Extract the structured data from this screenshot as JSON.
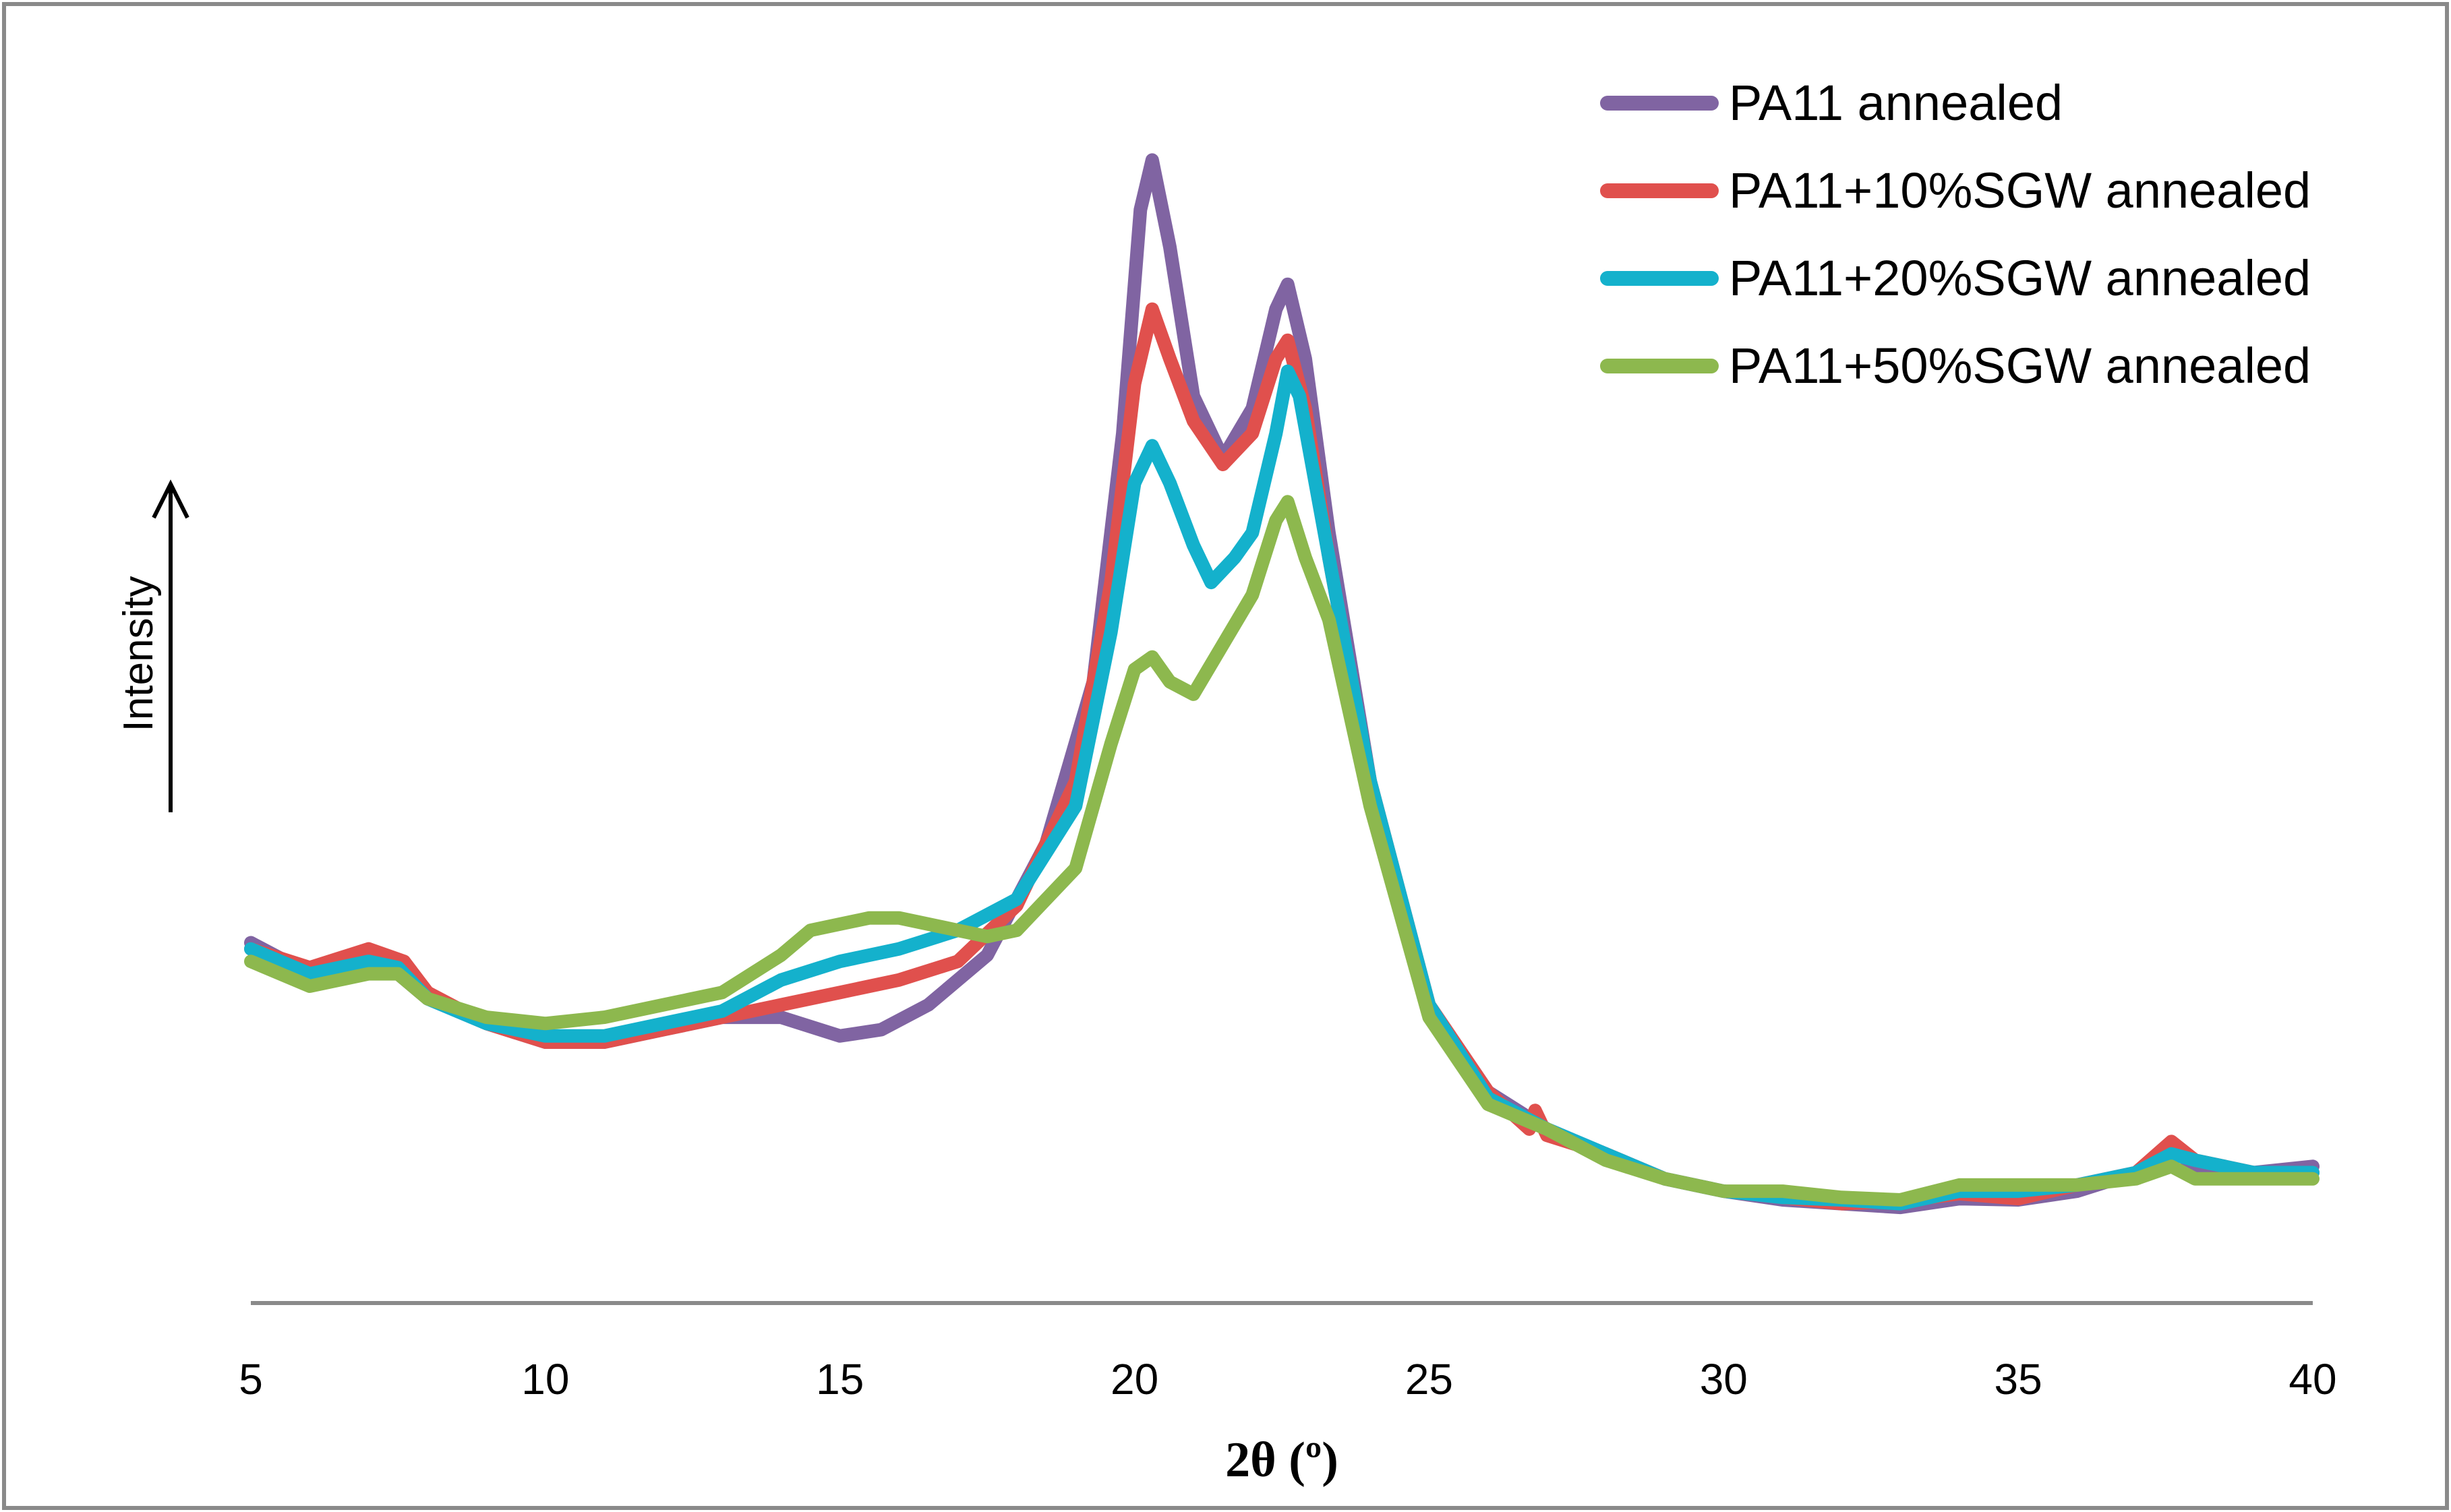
{
  "chart_data": {
    "type": "line",
    "title": "",
    "xlabel": "2θ (º)",
    "ylabel": "Intensity",
    "xlim": [
      5,
      40
    ],
    "ylim": [
      0,
      100
    ],
    "xticks": [
      5,
      10,
      15,
      20,
      25,
      30,
      35,
      40
    ],
    "xtick_labels": [
      "5",
      "10",
      "15",
      "20",
      "25",
      "30",
      "35",
      "40"
    ],
    "y_tick_labels_shown": false,
    "grid": false,
    "legend_position": "top-right",
    "series": [
      {
        "name": "PA11 annealed",
        "color": "#8064a2",
        "points": [
          [
            5,
            29
          ],
          [
            6,
            26.5
          ],
          [
            7,
            27.5
          ],
          [
            7.5,
            26.5
          ],
          [
            8,
            24.5
          ],
          [
            9,
            22.5
          ],
          [
            10,
            21
          ],
          [
            11,
            21
          ],
          [
            12,
            22
          ],
          [
            13,
            23
          ],
          [
            14,
            23
          ],
          [
            15,
            21.5
          ],
          [
            15.7,
            22
          ],
          [
            16.5,
            24
          ],
          [
            17.5,
            28
          ],
          [
            18.5,
            37
          ],
          [
            19.3,
            50
          ],
          [
            19.8,
            70
          ],
          [
            20.1,
            88
          ],
          [
            20.3,
            92
          ],
          [
            20.6,
            85
          ],
          [
            21,
            73
          ],
          [
            21.5,
            68
          ],
          [
            22,
            72
          ],
          [
            22.4,
            80
          ],
          [
            22.6,
            82
          ],
          [
            22.9,
            76
          ],
          [
            23.3,
            62
          ],
          [
            24,
            42
          ],
          [
            25,
            24
          ],
          [
            26,
            17
          ],
          [
            27,
            14
          ],
          [
            28,
            12
          ],
          [
            29,
            10
          ],
          [
            30,
            9
          ],
          [
            31,
            8.3
          ],
          [
            32,
            8
          ],
          [
            33,
            7.7
          ],
          [
            34,
            8.4
          ],
          [
            35,
            8.3
          ],
          [
            36,
            9
          ],
          [
            37,
            10.5
          ],
          [
            37.6,
            12.5
          ],
          [
            38,
            11
          ],
          [
            39,
            10.5
          ],
          [
            40,
            11
          ]
        ]
      },
      {
        "name": "PA11+10%SGW annealed",
        "color": "#e0504d",
        "points": [
          [
            5,
            28.5
          ],
          [
            6,
            27
          ],
          [
            7,
            28.5
          ],
          [
            7.6,
            27.5
          ],
          [
            8,
            25
          ],
          [
            9,
            22.5
          ],
          [
            10,
            21
          ],
          [
            11,
            21
          ],
          [
            12,
            22
          ],
          [
            13,
            23
          ],
          [
            14,
            24
          ],
          [
            15,
            25
          ],
          [
            16,
            26
          ],
          [
            17,
            27.5
          ],
          [
            18,
            32
          ],
          [
            19,
            42
          ],
          [
            19.6,
            58
          ],
          [
            20,
            74
          ],
          [
            20.3,
            80
          ],
          [
            20.6,
            76
          ],
          [
            21,
            71
          ],
          [
            21.5,
            67.5
          ],
          [
            22,
            70
          ],
          [
            22.4,
            76
          ],
          [
            22.6,
            77.5
          ],
          [
            22.9,
            72
          ],
          [
            23.3,
            60
          ],
          [
            24,
            42
          ],
          [
            25,
            24
          ],
          [
            26,
            17
          ],
          [
            26.7,
            14
          ],
          [
            26.8,
            15.5
          ],
          [
            27,
            13.5
          ],
          [
            28,
            12
          ],
          [
            29,
            10
          ],
          [
            30,
            9
          ],
          [
            31,
            8.5
          ],
          [
            32,
            8
          ],
          [
            33,
            8.2
          ],
          [
            34,
            8.8
          ],
          [
            35,
            8.4
          ],
          [
            36,
            9.5
          ],
          [
            37,
            10.5
          ],
          [
            37.6,
            13
          ],
          [
            38,
            11.5
          ],
          [
            39,
            10.5
          ],
          [
            40,
            10.5
          ]
        ]
      },
      {
        "name": "PA11+20%SGW annealed",
        "color": "#14b1cc",
        "points": [
          [
            5,
            28.5
          ],
          [
            6,
            26.5
          ],
          [
            7,
            27.5
          ],
          [
            7.5,
            27
          ],
          [
            8,
            24.5
          ],
          [
            9,
            22.5
          ],
          [
            10,
            21.5
          ],
          [
            11,
            21.5
          ],
          [
            12,
            22.5
          ],
          [
            13,
            23.5
          ],
          [
            14,
            26
          ],
          [
            15,
            27.5
          ],
          [
            16,
            28.5
          ],
          [
            17,
            30
          ],
          [
            18,
            32.5
          ],
          [
            19,
            40
          ],
          [
            19.6,
            54
          ],
          [
            20,
            66
          ],
          [
            20.3,
            69
          ],
          [
            20.6,
            66
          ],
          [
            21,
            61
          ],
          [
            21.3,
            58
          ],
          [
            21.7,
            60
          ],
          [
            22,
            62
          ],
          [
            22.4,
            70
          ],
          [
            22.6,
            75
          ],
          [
            22.8,
            73
          ],
          [
            23.3,
            60
          ],
          [
            24,
            42
          ],
          [
            25,
            24
          ],
          [
            26,
            16.5
          ],
          [
            27,
            14
          ],
          [
            28,
            12
          ],
          [
            29,
            10
          ],
          [
            30,
            9
          ],
          [
            31,
            8.5
          ],
          [
            32,
            8.3
          ],
          [
            33,
            8
          ],
          [
            34,
            9
          ],
          [
            35,
            9
          ],
          [
            36,
            9.5
          ],
          [
            37,
            10.5
          ],
          [
            37.6,
            12
          ],
          [
            38,
            11.5
          ],
          [
            39,
            10.5
          ],
          [
            40,
            10.5
          ]
        ]
      },
      {
        "name": "PA11+50%SGW annealed",
        "color": "#8db84e",
        "points": [
          [
            5,
            27.5
          ],
          [
            6,
            25.5
          ],
          [
            7,
            26.5
          ],
          [
            7.5,
            26.5
          ],
          [
            8,
            24.5
          ],
          [
            9,
            23
          ],
          [
            10,
            22.5
          ],
          [
            11,
            23
          ],
          [
            12,
            24
          ],
          [
            13,
            25
          ],
          [
            14,
            28
          ],
          [
            14.5,
            30
          ],
          [
            15,
            30.5
          ],
          [
            15.5,
            31
          ],
          [
            16,
            31
          ],
          [
            17,
            30
          ],
          [
            17.5,
            29.5
          ],
          [
            18,
            30
          ],
          [
            19,
            35
          ],
          [
            19.6,
            45
          ],
          [
            20,
            51
          ],
          [
            20.3,
            52
          ],
          [
            20.6,
            50
          ],
          [
            21,
            49
          ],
          [
            21.5,
            53
          ],
          [
            22,
            57
          ],
          [
            22.4,
            63
          ],
          [
            22.6,
            64.5
          ],
          [
            22.9,
            60
          ],
          [
            23.3,
            55
          ],
          [
            24,
            40
          ],
          [
            25,
            23
          ],
          [
            26,
            16
          ],
          [
            27,
            14
          ],
          [
            28,
            11.5
          ],
          [
            29,
            10
          ],
          [
            30,
            9
          ],
          [
            31,
            9
          ],
          [
            32,
            8.5
          ],
          [
            33,
            8.3
          ],
          [
            34,
            9.5
          ],
          [
            35,
            9.5
          ],
          [
            36,
            9.5
          ],
          [
            37,
            10
          ],
          [
            37.6,
            11
          ],
          [
            38,
            10
          ],
          [
            39,
            10
          ],
          [
            40,
            10
          ]
        ]
      }
    ]
  }
}
